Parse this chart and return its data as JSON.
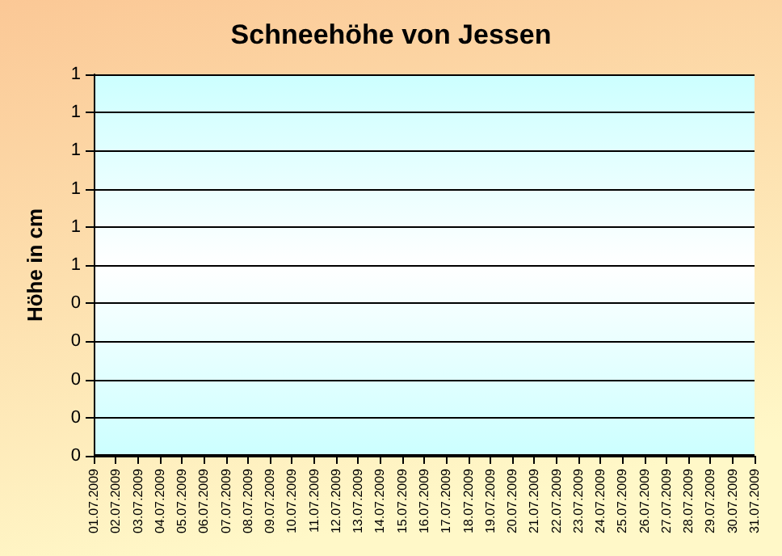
{
  "chart_data": {
    "type": "line",
    "title": "Schneehöhe von Jessen",
    "ylabel": "Höhe in cm",
    "categories": [
      "01.07.2009",
      "02.07.2009",
      "03.07.2009",
      "04.07.2009",
      "05.07.2009",
      "06.07.2009",
      "07.07.2009",
      "08.07.2009",
      "09.07.2009",
      "10.07.2009",
      "11.07.2009",
      "12.07.2009",
      "13.07.2009",
      "14.07.2009",
      "15.07.2009",
      "16.07.2009",
      "17.07.2009",
      "18.07.2009",
      "19.07.2009",
      "20.07.2009",
      "21.07.2009",
      "22.07.2009",
      "23.07.2009",
      "24.07.2009",
      "25.07.2009",
      "26.07.2009",
      "27.07.2009",
      "28.07.2009",
      "29.07.2009",
      "30.07.2009",
      "31.07.2009"
    ],
    "values": [
      0,
      0,
      0,
      0,
      0,
      0,
      0,
      0,
      0,
      0,
      0,
      0,
      0,
      0,
      0,
      0,
      0,
      0,
      0,
      0,
      0,
      0,
      0,
      0,
      0,
      0,
      0,
      0,
      0,
      0,
      0
    ],
    "ylim": [
      0,
      1
    ],
    "yticks": [
      0,
      {
        "value": 0.1,
        "label": "0"
      },
      {
        "value": 0.2,
        "label": "0"
      },
      {
        "value": 0.3,
        "label": "0"
      },
      {
        "value": 0.4,
        "label": "0"
      },
      {
        "value": 0.5,
        "label": "1"
      },
      {
        "value": 0.6,
        "label": "1"
      },
      {
        "value": 0.7,
        "label": "1"
      },
      {
        "value": 0.8,
        "label": "1"
      },
      {
        "value": 0.9,
        "label": "1"
      },
      1
    ],
    "color": "#000000",
    "grid": "y",
    "marker": "none"
  }
}
